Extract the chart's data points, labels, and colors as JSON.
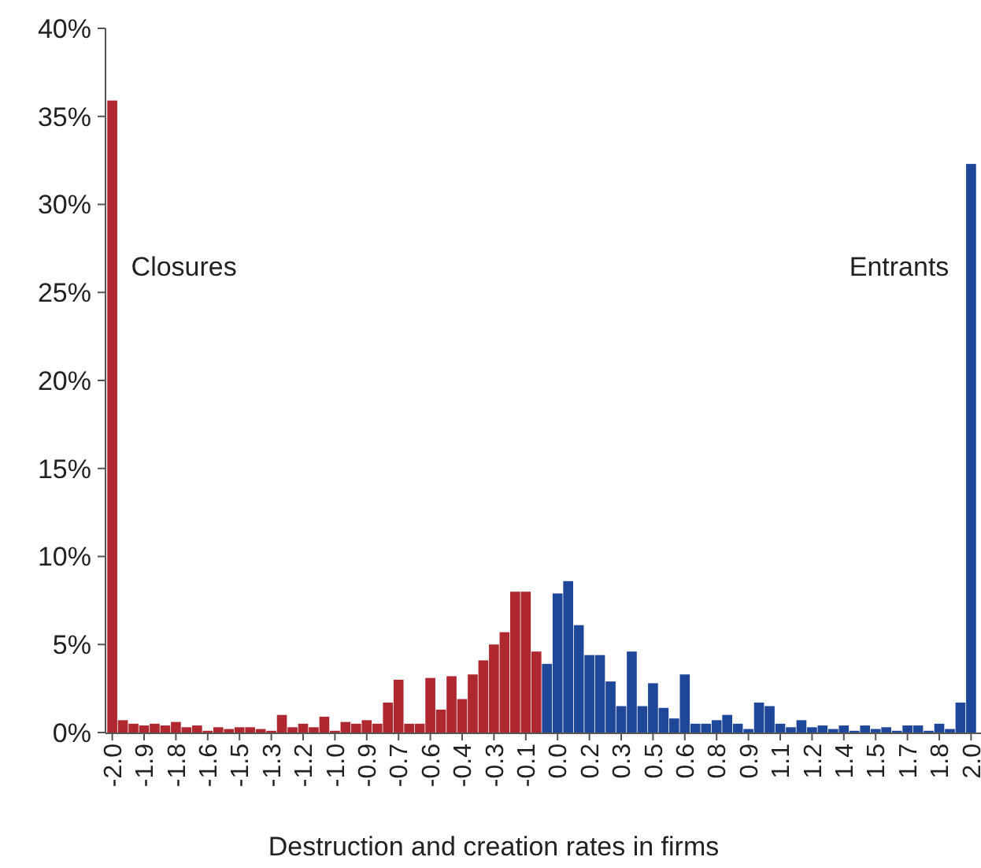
{
  "chart_data": {
    "type": "bar",
    "xlabel": "Destruction and creation rates in firms",
    "categories": [
      "-2.0",
      null,
      null,
      "-1.9",
      null,
      null,
      "-1.8",
      null,
      null,
      "-1.6",
      null,
      null,
      "-1.5",
      null,
      null,
      "-1.3",
      null,
      null,
      "-1.2",
      null,
      null,
      "-1.0",
      null,
      null,
      "-0.9",
      null,
      null,
      "-0.7",
      null,
      null,
      "-0.6",
      null,
      null,
      "-0.4",
      null,
      null,
      "-0.3",
      null,
      null,
      "-0.1",
      null,
      null,
      "0.0",
      null,
      null,
      "0.2",
      null,
      null,
      "0.3",
      null,
      null,
      "0.5",
      null,
      null,
      "0.6",
      null,
      null,
      "0.8",
      null,
      null,
      "0.9",
      null,
      null,
      "1.1",
      null,
      null,
      "1.2",
      null,
      null,
      "1.4",
      null,
      null,
      "1.5",
      null,
      null,
      "1.7",
      null,
      null,
      "1.8",
      null,
      null,
      "2.0"
    ],
    "values": [
      35.9,
      0.7,
      0.5,
      0.4,
      0.5,
      0.4,
      0.6,
      0.3,
      0.4,
      0.1,
      0.3,
      0.2,
      0.3,
      0.3,
      0.2,
      0.1,
      1.0,
      0.3,
      0.5,
      0.3,
      0.9,
      0.1,
      0.6,
      0.5,
      0.7,
      0.5,
      1.7,
      3.0,
      0.5,
      0.5,
      3.1,
      1.3,
      3.2,
      1.9,
      3.3,
      4.1,
      5.0,
      5.7,
      8.0,
      8.0,
      4.6,
      3.9,
      7.9,
      8.6,
      6.1,
      4.4,
      4.4,
      2.9,
      1.5,
      4.6,
      1.5,
      2.8,
      1.4,
      0.8,
      3.3,
      0.5,
      0.5,
      0.7,
      1.0,
      0.5,
      0.2,
      1.7,
      1.5,
      0.5,
      0.3,
      0.7,
      0.3,
      0.4,
      0.2,
      0.4,
      0.1,
      0.4,
      0.2,
      0.3,
      0.1,
      0.4,
      0.4,
      0.1,
      0.5,
      0.2,
      1.7,
      32.3
    ],
    "colors": [
      "#b0282f",
      "#b0282f",
      "#b0282f",
      "#b0282f",
      "#b0282f",
      "#b0282f",
      "#b0282f",
      "#b0282f",
      "#b0282f",
      "#b0282f",
      "#b0282f",
      "#b0282f",
      "#b0282f",
      "#b0282f",
      "#b0282f",
      "#b0282f",
      "#b0282f",
      "#b0282f",
      "#b0282f",
      "#b0282f",
      "#b0282f",
      "#b0282f",
      "#b0282f",
      "#b0282f",
      "#b0282f",
      "#b0282f",
      "#b0282f",
      "#b0282f",
      "#b0282f",
      "#b0282f",
      "#b0282f",
      "#b0282f",
      "#b0282f",
      "#b0282f",
      "#b0282f",
      "#b0282f",
      "#b0282f",
      "#b0282f",
      "#b0282f",
      "#b0282f",
      "#b0282f",
      "#1f4799",
      "#1f4799",
      "#1f4799",
      "#1f4799",
      "#1f4799",
      "#1f4799",
      "#1f4799",
      "#1f4799",
      "#1f4799",
      "#1f4799",
      "#1f4799",
      "#1f4799",
      "#1f4799",
      "#1f4799",
      "#1f4799",
      "#1f4799",
      "#1f4799",
      "#1f4799",
      "#1f4799",
      "#1f4799",
      "#1f4799",
      "#1f4799",
      "#1f4799",
      "#1f4799",
      "#1f4799",
      "#1f4799",
      "#1f4799",
      "#1f4799",
      "#1f4799",
      "#1f4799",
      "#1f4799",
      "#1f4799",
      "#1f4799",
      "#1f4799",
      "#1f4799",
      "#1f4799",
      "#1f4799",
      "#1f4799",
      "#1f4799",
      "#1f4799",
      "#1f4799"
    ],
    "ylim": [
      0,
      40
    ],
    "yticks": [
      {
        "value": 0,
        "label": "0%"
      },
      {
        "value": 5,
        "label": "5%"
      },
      {
        "value": 10,
        "label": "10%"
      },
      {
        "value": 15,
        "label": "15%"
      },
      {
        "value": 20,
        "label": "20%"
      },
      {
        "value": 25,
        "label": "25%"
      },
      {
        "value": 30,
        "label": "30%"
      },
      {
        "value": 35,
        "label": "35%"
      },
      {
        "value": 40,
        "label": "40%"
      }
    ],
    "annotations": [
      {
        "text": "Closures",
        "x": "-2.0",
        "y": 26.5
      },
      {
        "text": "Entrants",
        "x": "2.0",
        "y": 26.5
      }
    ],
    "grid": false
  }
}
